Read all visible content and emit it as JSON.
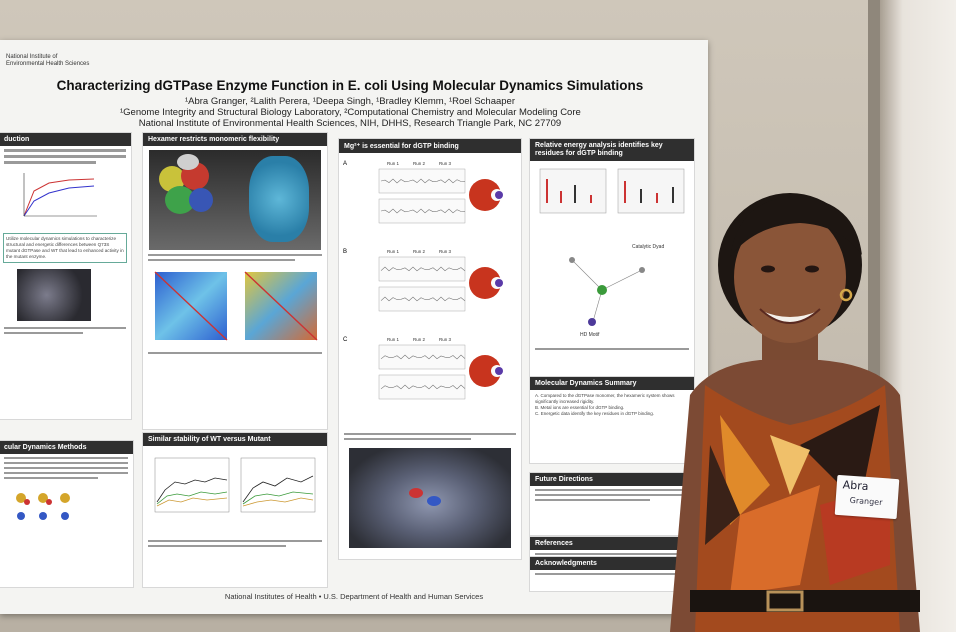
{
  "poster": {
    "logo_line1": "National Institute of",
    "logo_line2": "Environmental Health Sciences",
    "title": "Characterizing dGTPase Enzyme Function in E. coli Using Molecular Dynamics Simulations",
    "authors": "¹Abra Granger, ²Lalith Perera, ¹Deepa Singh, ¹Bradley Klemm, ¹Roel Schaaper",
    "affiliation1": "¹Genome Integrity and Structural Biology Laboratory, ²Computational Chemistry and Molecular Modeling Core",
    "affiliation2": "National Institute of Environmental Health Sciences, NIH, DHHS, Research Triangle Park, NC 27709",
    "footer": "National Institutes of Health • U.S. Department of Health and Human Services",
    "sections": {
      "intro": "duction",
      "hexamer": "Hexamer restricts monomeric flexibility",
      "mg": "Mg²⁺ is essential for dGTP binding",
      "energy": "Relative energy analysis identifies key residues for dGTP binding",
      "md_summary": "Molecular Dynamics Summary",
      "future": "Future Directions",
      "references": "References",
      "acknowledgments": "Acknowledgments",
      "methods": "cular Dynamics Methods",
      "stability": "Similar stability of WT versus Mutant"
    },
    "mg_panels": [
      "A",
      "B",
      "C"
    ],
    "run_labels": [
      "Run 1",
      "Run 2",
      "Run 3"
    ],
    "summary_items": [
      "A.  Compared to the dGTPase monomer, the hexameric system shows significantly increased rigidity.",
      "B.  Metal ions are essential for dGTP binding.",
      "C.  Energetic data identify the key residues in dGTP binding."
    ],
    "energy_labels": {
      "catalytic": "Catalytic Dyad",
      "hd": "HD Motif"
    },
    "intro_highlight": "Utilize molecular dynamics simulations to characterize structural and energetic differences between Q73S mutant dGTPase and WT that lead to enhanced activity in the mutant enzyme."
  },
  "nametag": {
    "name": "Abra",
    "surname": "Granger"
  },
  "colors": {
    "section_header": "#2f2f2f",
    "poster_bg": "#f4f4f2",
    "wall": "#c4bcaf"
  }
}
